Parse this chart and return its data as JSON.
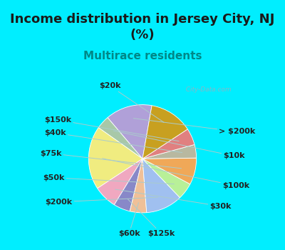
{
  "title": "Income distribution in Jersey City, NJ\n(%)",
  "subtitle": "Multirace residents",
  "labels": [
    "> $200k",
    "$10k",
    "$100k",
    "$30k",
    "$125k",
    "$60k",
    "$200k",
    "$50k",
    "$75k",
    "$40k",
    "$150k",
    "$20k"
  ],
  "sizes": [
    14,
    4,
    19,
    7,
    5,
    5,
    11,
    5,
    8,
    4,
    5,
    13
  ],
  "colors": [
    "#b0a0d8",
    "#a8c8a8",
    "#f0ec80",
    "#f0a8c0",
    "#8888c8",
    "#f0c098",
    "#a0c0f0",
    "#b8f098",
    "#f0a858",
    "#b8b8a0",
    "#e08080",
    "#c8a020"
  ],
  "bg_color": "#00eeff",
  "chart_bg": "#d8f0e0",
  "title_fontsize": 13,
  "title_color": "#1a1a1a",
  "subtitle_color": "#008888",
  "subtitle_fontsize": 11,
  "label_fontsize": 8,
  "watermark": "  City-Data.com",
  "startangle": 80
}
